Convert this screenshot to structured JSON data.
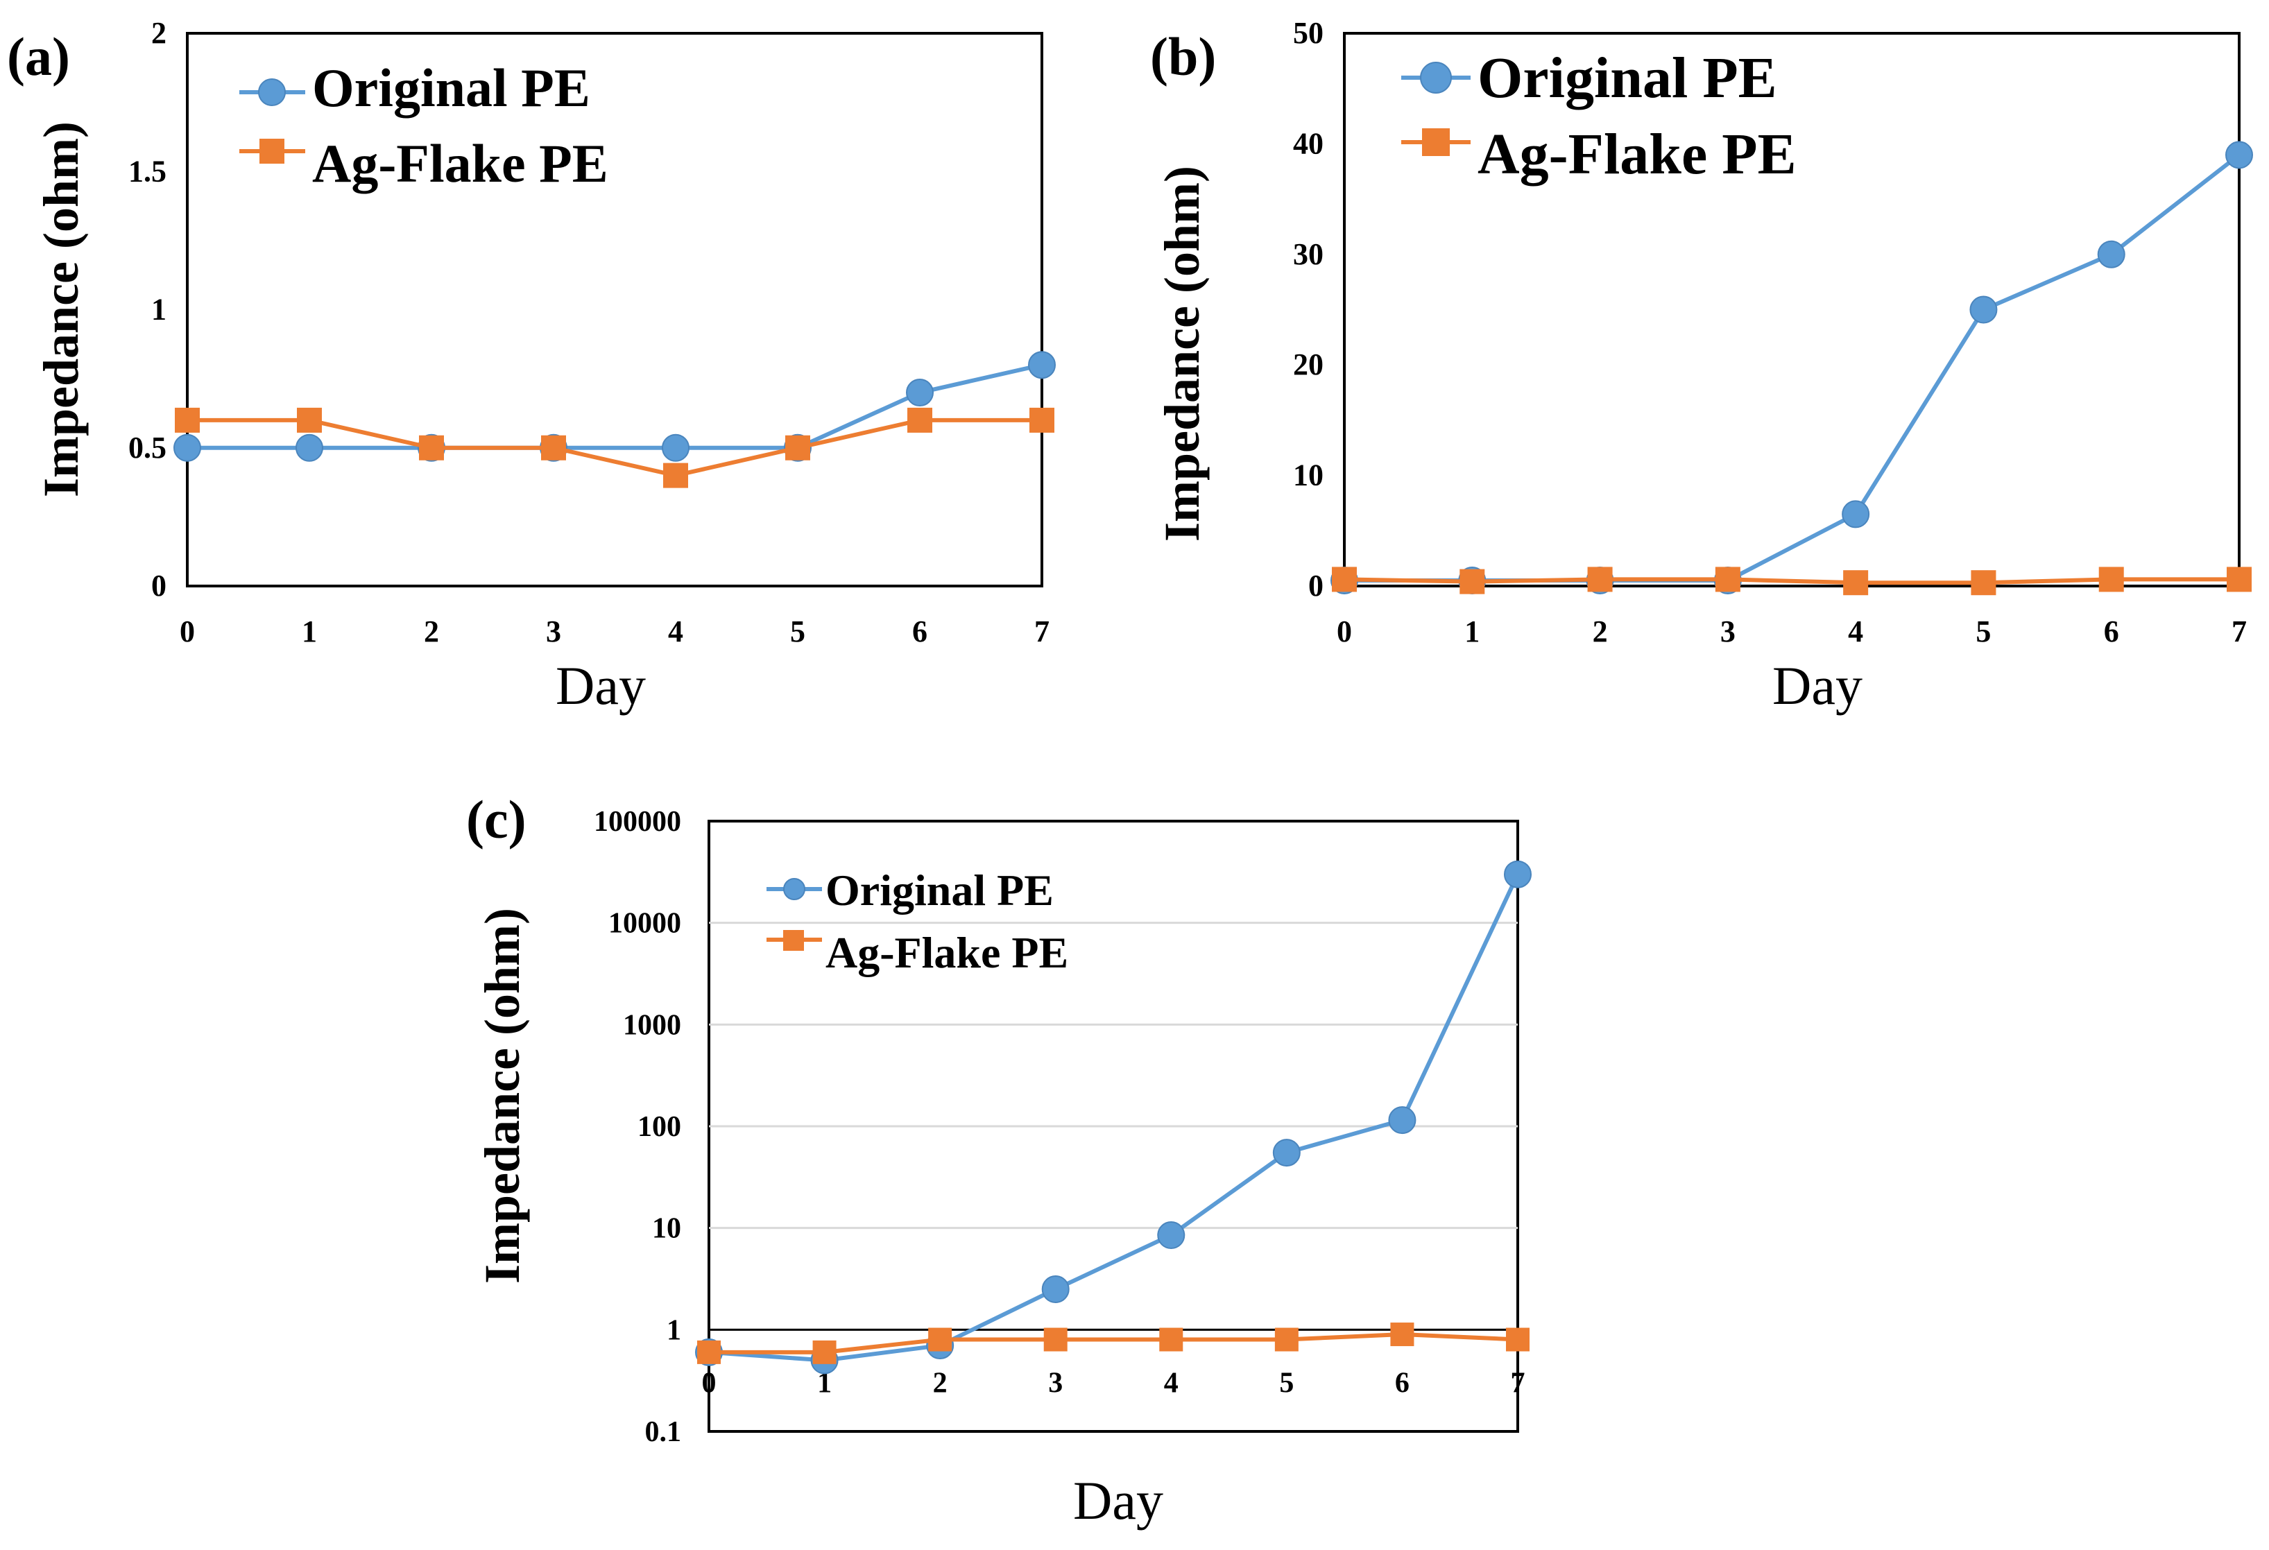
{
  "colors": {
    "original": "#5B9BD5",
    "agflake": "#ED7D31",
    "axis": "#000000",
    "grid": "#D9D9D9"
  },
  "icons": {
    "original_marker": "circle-marker",
    "agflake_marker": "square-marker"
  },
  "chart_data": [
    {
      "id": "a",
      "panel_label": "(a)",
      "type": "line",
      "scale": "linear",
      "xlabel": "Day",
      "ylabel": "Impedance (ohm)",
      "x": [
        0,
        1,
        2,
        3,
        4,
        5,
        6,
        7
      ],
      "x_tick_labels": [
        "0",
        "1",
        "2",
        "3",
        "4",
        "5",
        "6",
        "7"
      ],
      "ylim": [
        0,
        2
      ],
      "y_ticks": [
        0,
        0.5,
        1,
        1.5,
        2
      ],
      "y_tick_labels": [
        "0",
        "0.5",
        "1",
        "1.5",
        "2"
      ],
      "grid": false,
      "legend_position": "top-left",
      "series": [
        {
          "key": "original",
          "name": "Original PE",
          "marker": "circle",
          "values": [
            0.5,
            0.5,
            0.5,
            0.5,
            0.5,
            0.5,
            0.7,
            0.8
          ]
        },
        {
          "key": "agflake",
          "name": "Ag-Flake PE",
          "marker": "square",
          "values": [
            0.6,
            0.6,
            0.5,
            0.5,
            0.4,
            0.5,
            0.6,
            0.6
          ]
        }
      ]
    },
    {
      "id": "b",
      "panel_label": "(b)",
      "type": "line",
      "scale": "linear",
      "xlabel": "Day",
      "ylabel": "Impedance (ohm)",
      "x": [
        0,
        1,
        2,
        3,
        4,
        5,
        6,
        7
      ],
      "x_tick_labels": [
        "0",
        "1",
        "2",
        "3",
        "4",
        "5",
        "6",
        "7"
      ],
      "ylim": [
        0,
        50
      ],
      "y_ticks": [
        0,
        10,
        20,
        30,
        40,
        50
      ],
      "y_tick_labels": [
        "0",
        "10",
        "20",
        "30",
        "40",
        "50"
      ],
      "grid": false,
      "legend_position": "top-left",
      "series": [
        {
          "key": "original",
          "name": "Original PE",
          "marker": "circle",
          "values": [
            0.5,
            0.5,
            0.5,
            0.5,
            6.5,
            25,
            30,
            39
          ]
        },
        {
          "key": "agflake",
          "name": "Ag-Flake PE",
          "marker": "square",
          "values": [
            0.6,
            0.4,
            0.6,
            0.6,
            0.3,
            0.3,
            0.6,
            0.6
          ]
        }
      ]
    },
    {
      "id": "c",
      "panel_label": "(c)",
      "type": "line",
      "scale": "log",
      "xlabel": "Day",
      "ylabel": "Impedance (ohm)",
      "x": [
        0,
        1,
        2,
        3,
        4,
        5,
        6,
        7
      ],
      "x_tick_labels": [
        "0",
        "1",
        "2",
        "3",
        "4",
        "5",
        "6",
        "7"
      ],
      "ylim": [
        0.1,
        100000
      ],
      "y_ticks": [
        0.1,
        1,
        10,
        100,
        1000,
        10000,
        100000
      ],
      "y_tick_labels": [
        "0.1",
        "1",
        "10",
        "100",
        "1000",
        "10000",
        "100000"
      ],
      "grid": true,
      "legend_position": "top-left",
      "series": [
        {
          "key": "original",
          "name": "Original PE",
          "marker": "circle",
          "values": [
            0.6,
            0.5,
            0.7,
            2.5,
            8.5,
            55,
            115,
            30000
          ]
        },
        {
          "key": "agflake",
          "name": "Ag-Flake PE",
          "marker": "square",
          "values": [
            0.6,
            0.6,
            0.8,
            0.8,
            0.8,
            0.8,
            0.9,
            0.8
          ]
        }
      ]
    }
  ]
}
